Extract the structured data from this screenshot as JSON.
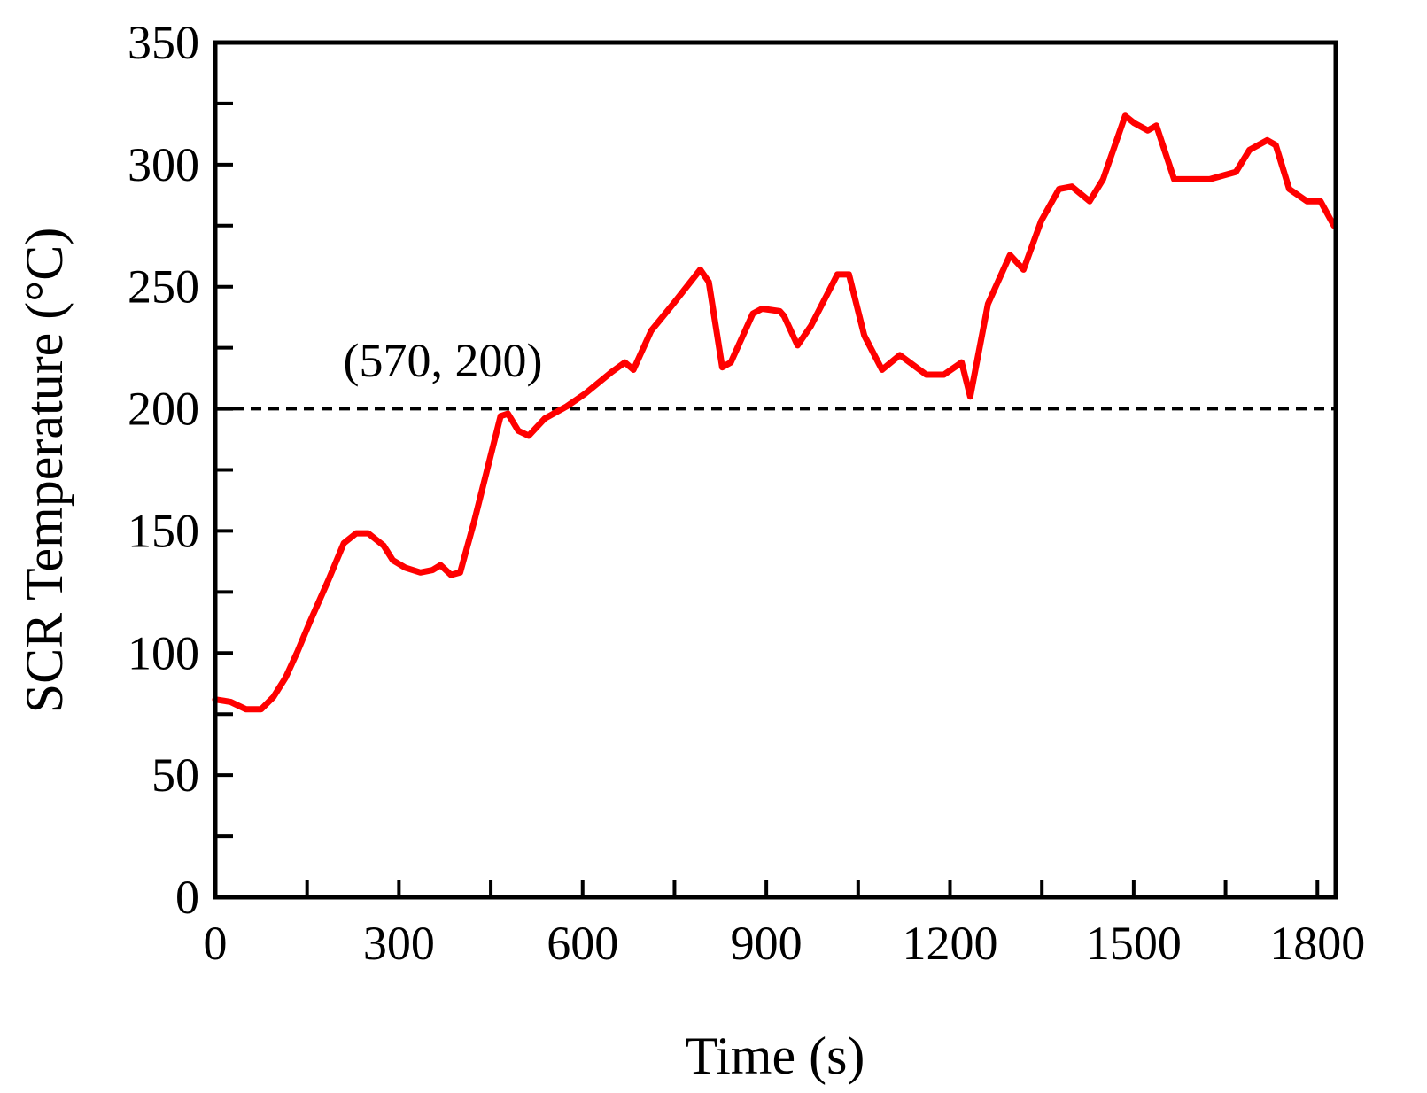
{
  "chart_data": {
    "type": "line",
    "xlabel": "Time (s)",
    "ylabel": "SCR Temperature (°C)",
    "annotation": "(570, 200)",
    "reference_line": 200,
    "xlim": [
      0,
      1830
    ],
    "ylim": [
      0,
      350
    ],
    "xticks": [
      0,
      300,
      600,
      900,
      1200,
      1500,
      1800
    ],
    "xminor_ticks": [
      150,
      450,
      750,
      1050,
      1350,
      1650
    ],
    "yticks": [
      0,
      50,
      100,
      150,
      200,
      250,
      300,
      350
    ],
    "yminor_ticks": [
      25,
      75,
      125,
      175,
      225,
      275,
      325
    ],
    "series": [
      {
        "color": "#ff0000",
        "x": [
          0,
          25,
          50,
          75,
          95,
          115,
          135,
          155,
          185,
          210,
          230,
          250,
          275,
          290,
          310,
          335,
          355,
          368,
          385,
          400,
          423,
          441,
          466,
          478,
          495,
          512,
          538,
          574,
          603,
          647,
          669,
          683,
          712,
          748,
          792,
          806,
          828,
          842,
          878,
          893,
          922,
          929,
          951,
          973,
          1016,
          1035,
          1060,
          1089,
          1118,
          1161,
          1190,
          1219,
          1233,
          1262,
          1298,
          1320,
          1349,
          1378,
          1399,
          1428,
          1450,
          1486,
          1501,
          1523,
          1537,
          1566,
          1595,
          1624,
          1667,
          1689,
          1718,
          1732,
          1754,
          1783,
          1805,
          1827
        ],
        "values": [
          81,
          80,
          77,
          77,
          82,
          90,
          101,
          113,
          130,
          145,
          149,
          149,
          144,
          138,
          135,
          133,
          134,
          136,
          132,
          133,
          154,
          172,
          197,
          198,
          191,
          189,
          196,
          201,
          206,
          215,
          219,
          216,
          232,
          243,
          257,
          252,
          217,
          219,
          239,
          241,
          240,
          238,
          226,
          234,
          255,
          255,
          230,
          216,
          222,
          214,
          214,
          219,
          205,
          243,
          263,
          257,
          277,
          290,
          291,
          285,
          294,
          320,
          317,
          314,
          316,
          294,
          294,
          294,
          297,
          306,
          310,
          308,
          290,
          285,
          285,
          275
        ]
      }
    ]
  }
}
